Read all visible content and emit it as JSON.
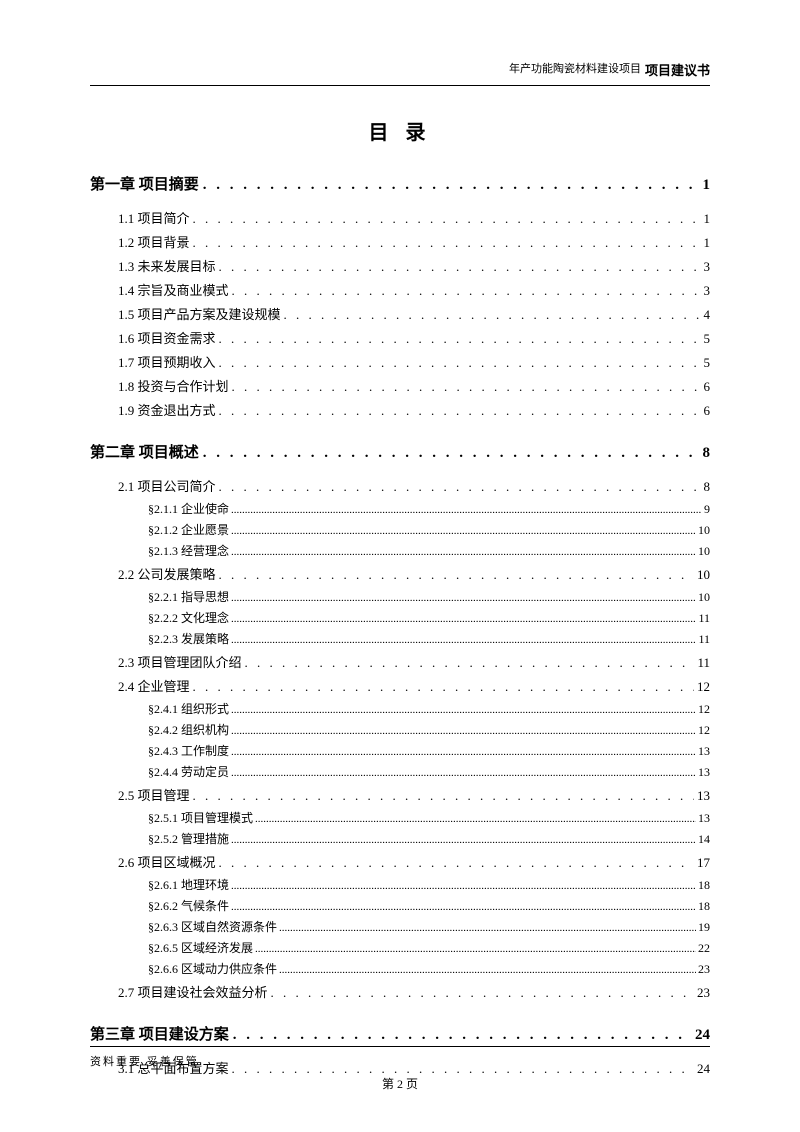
{
  "header": {
    "subtitle": "年产功能陶瓷材料建设项目",
    "title_bold": "项目建议书"
  },
  "toc_title": "目 录",
  "chapters": [
    {
      "label": "第一章 项目摘要",
      "page": "1",
      "sections": [
        {
          "label": "1.1 项目简介",
          "page": "1",
          "subs": []
        },
        {
          "label": "1.2 项目背景",
          "page": "1",
          "subs": []
        },
        {
          "label": "1.3 未来发展目标",
          "page": "3",
          "subs": []
        },
        {
          "label": "1.4 宗旨及商业模式",
          "page": "3",
          "subs": []
        },
        {
          "label": "1.5 项目产品方案及建设规模",
          "page": "4",
          "subs": []
        },
        {
          "label": "1.6 项目资金需求",
          "page": "5",
          "subs": []
        },
        {
          "label": "1.7 项目预期收入",
          "page": "5",
          "subs": []
        },
        {
          "label": "1.8 投资与合作计划",
          "page": "6",
          "subs": []
        },
        {
          "label": "1.9 资金退出方式",
          "page": "6",
          "subs": []
        }
      ]
    },
    {
      "label": "第二章 项目概述",
      "page": "8",
      "sections": [
        {
          "label": "2.1 项目公司简介",
          "page": "8",
          "subs": [
            {
              "label": "§2.1.1 企业使命",
              "page": "9"
            },
            {
              "label": "§2.1.2 企业愿景",
              "page": "10"
            },
            {
              "label": "§2.1.3 经营理念",
              "page": "10"
            }
          ]
        },
        {
          "label": "2.2 公司发展策略",
          "page": "10",
          "subs": [
            {
              "label": "§2.2.1 指导思想",
              "page": "10"
            },
            {
              "label": "§2.2.2 文化理念",
              "page": "11"
            },
            {
              "label": "§2.2.3 发展策略",
              "page": "11"
            }
          ]
        },
        {
          "label": "2.3 项目管理团队介绍",
          "page": "11",
          "subs": []
        },
        {
          "label": "2.4 企业管理",
          "page": "12",
          "subs": [
            {
              "label": "§2.4.1 组织形式",
              "page": "12"
            },
            {
              "label": "§2.4.2 组织机构",
              "page": "12"
            },
            {
              "label": "§2.4.3 工作制度",
              "page": "13"
            },
            {
              "label": "§2.4.4 劳动定员",
              "page": "13"
            }
          ]
        },
        {
          "label": "2.5 项目管理",
          "page": "13",
          "subs": [
            {
              "label": "§2.5.1 项目管理模式",
              "page": "13"
            },
            {
              "label": "§2.5.2 管理措施",
              "page": "14"
            }
          ]
        },
        {
          "label": "2.6 项目区域概况",
          "page": "17",
          "subs": [
            {
              "label": "§2.6.1 地理环境",
              "page": "18"
            },
            {
              "label": "§2.6.2 气候条件",
              "page": "18"
            },
            {
              "label": "§2.6.3 区域自然资源条件",
              "page": "19"
            },
            {
              "label": "§2.6.5 区域经济发展",
              "page": "22"
            },
            {
              "label": "§2.6.6 区域动力供应条件",
              "page": "23"
            }
          ]
        },
        {
          "label": "2.7 项目建设社会效益分析",
          "page": "23",
          "subs": []
        }
      ]
    },
    {
      "label": "第三章 项目建设方案",
      "page": "24",
      "sections": [
        {
          "label": "3.1 总平面布置方案",
          "page": "24",
          "subs": []
        }
      ]
    }
  ],
  "footer": {
    "note": "资料重要  妥善保管",
    "page_label": "第 2 页"
  },
  "dots_chapter": ". . . . . . . . . . . . . . . . . . . . . . . . . . . . . . . . . . . . . . . . . . . . . . . . . . . . . . . . . . . . . . . . . . . . . . . . . . . . . . . . . . . . . . . . . . . . . . .",
  "dots_section": ". . . . . . . . . . . . . . . . . . . . . . . . . . . . . . . . . . . . . . . . . . . . . . . . . . . . . . . . . . . . . . . . . . . . . . . . . . . . . . . . . . . . . . . . . . . . . . . . . . . . . . . . . . .",
  "dots_sub": "..............................................................................................................................................................................................................."
}
